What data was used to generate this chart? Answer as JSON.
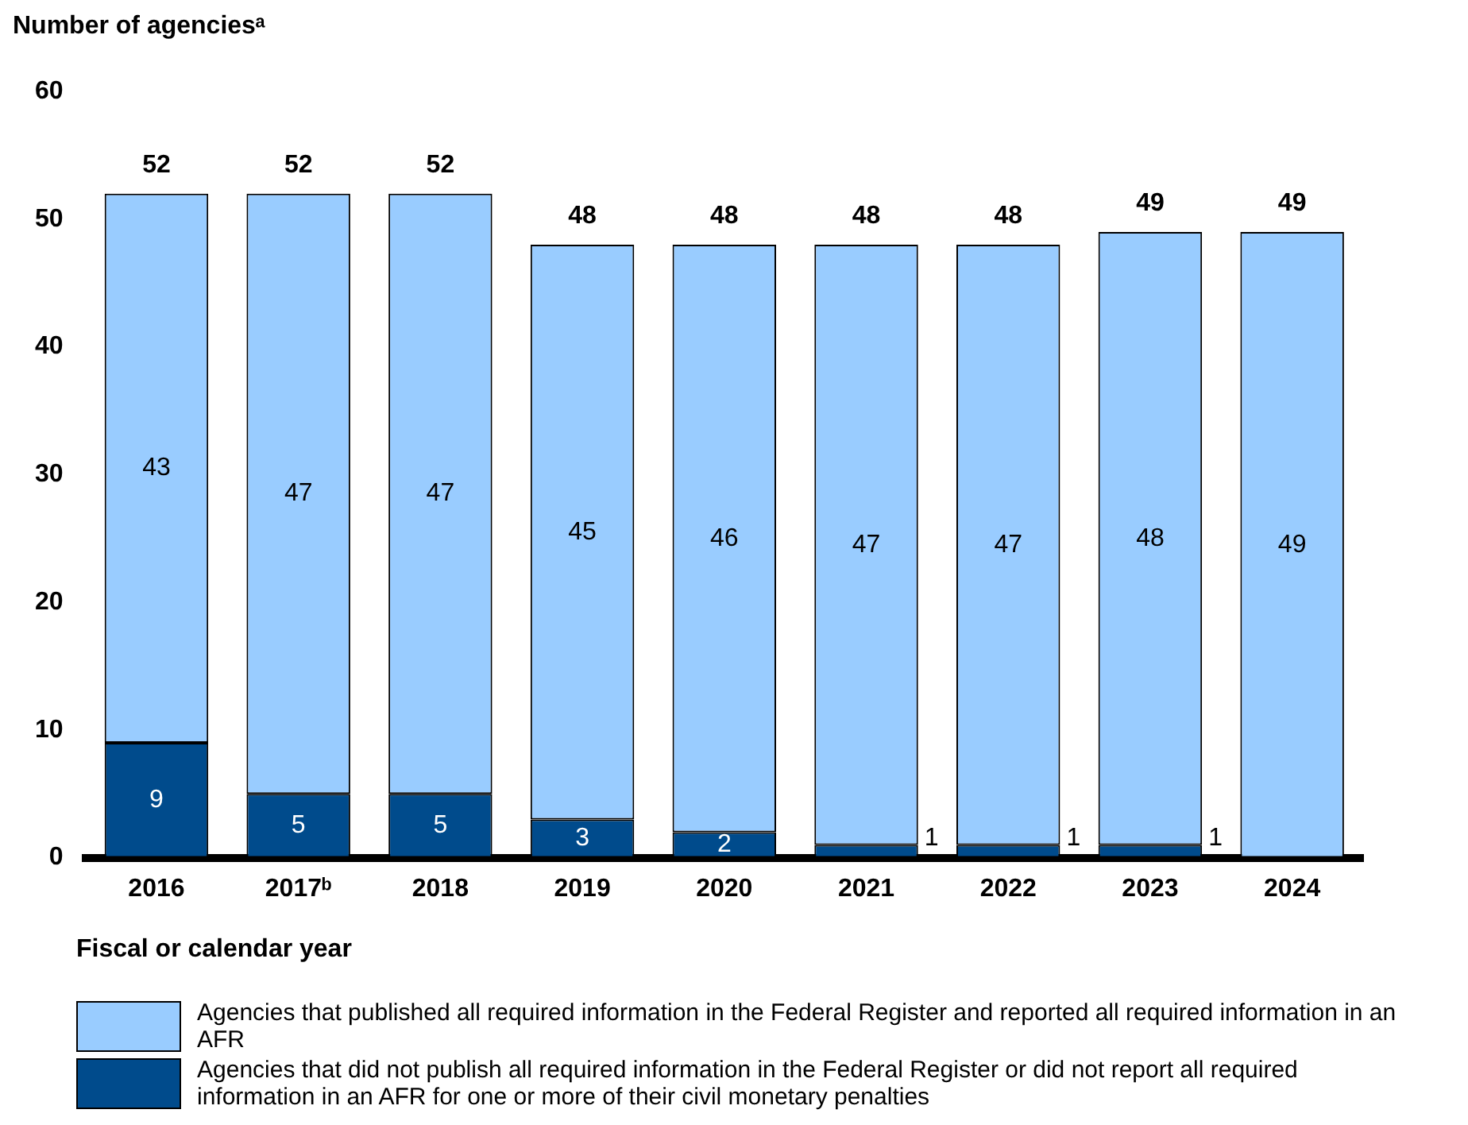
{
  "chart_data": {
    "type": "bar",
    "stacked": true,
    "ylabel": "Number of agenciesᵃ",
    "xlabel": "Fiscal or calendar year",
    "categories": [
      "2016",
      "2017ᵇ",
      "2018",
      "2019",
      "2020",
      "2021",
      "2022",
      "2023",
      "2024"
    ],
    "series": [
      {
        "name": "Agencies that did not publish all required information in the Federal Register or did not report all required information in an AFR for one or more of their civil monetary penalties",
        "color": "#004b8c",
        "values": [
          9,
          5,
          5,
          3,
          2,
          1,
          1,
          1,
          0
        ],
        "value_labels": [
          "9",
          "5",
          "5",
          "3",
          "2",
          "1",
          "1",
          "1",
          null
        ]
      },
      {
        "name": "Agencies that published all required information in the Federal Register and reported all required information in an AFR",
        "color": "#99ccff",
        "values": [
          43,
          47,
          47,
          45,
          46,
          47,
          47,
          48,
          49
        ],
        "value_labels": [
          "43",
          "47",
          "47",
          "45",
          "46",
          "47",
          "47",
          "48",
          "49"
        ]
      }
    ],
    "totals": [
      "52",
      "52",
      "52",
      "48",
      "48",
      "48",
      "48",
      "49",
      "49"
    ],
    "ylim": [
      0,
      60
    ],
    "yticks": [
      0,
      10,
      20,
      30,
      40,
      50,
      60
    ],
    "grid": false,
    "legend": "bottom"
  }
}
